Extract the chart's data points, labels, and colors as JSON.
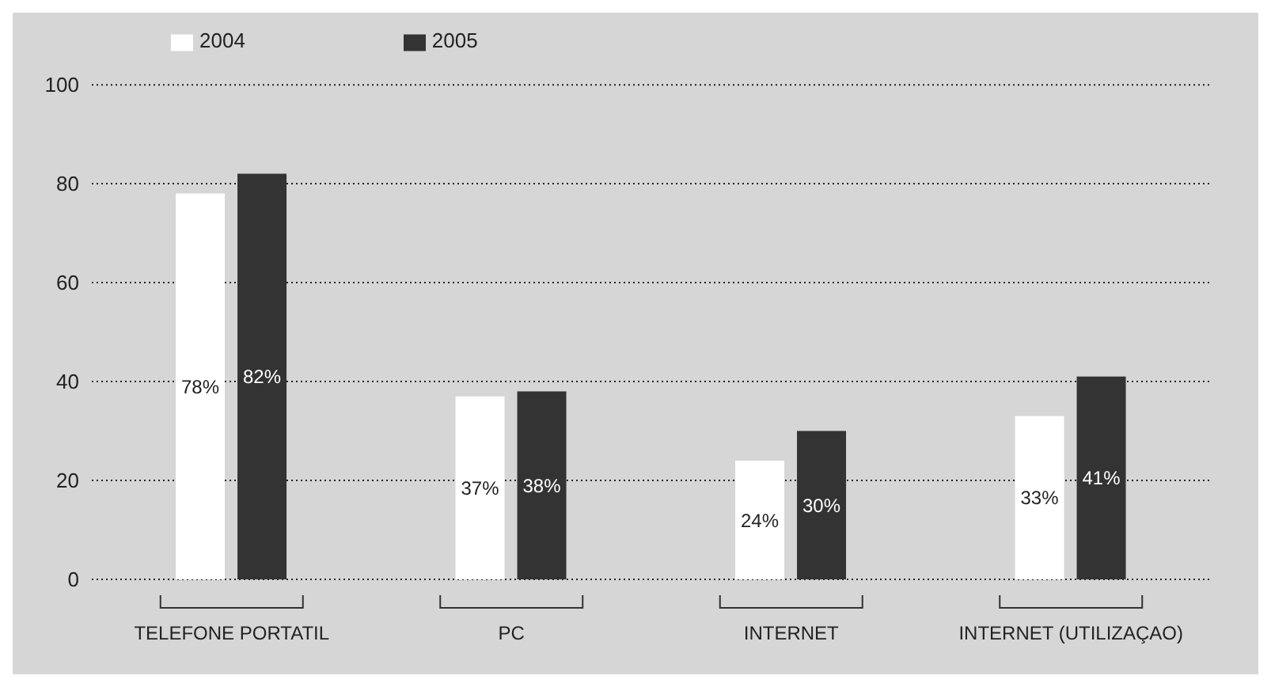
{
  "chart_data": {
    "type": "bar",
    "categories": [
      "TELEFONE PORTATIL",
      "PC",
      "INTERNET",
      "INTERNET (UTILIZAÇAO)"
    ],
    "series": [
      {
        "name": "2004",
        "color": "#ffffff",
        "values": [
          78,
          37,
          24,
          33
        ],
        "value_labels": [
          "78%",
          "37%",
          "24%",
          "33%"
        ]
      },
      {
        "name": "2005",
        "color": "#333333",
        "values": [
          82,
          38,
          30,
          41
        ],
        "value_labels": [
          "82%",
          "38%",
          "30%",
          "41%"
        ]
      }
    ],
    "ylim": [
      0,
      100
    ],
    "yticks": [
      0,
      20,
      40,
      60,
      80,
      100
    ],
    "grid": "y",
    "legend": "top left"
  }
}
